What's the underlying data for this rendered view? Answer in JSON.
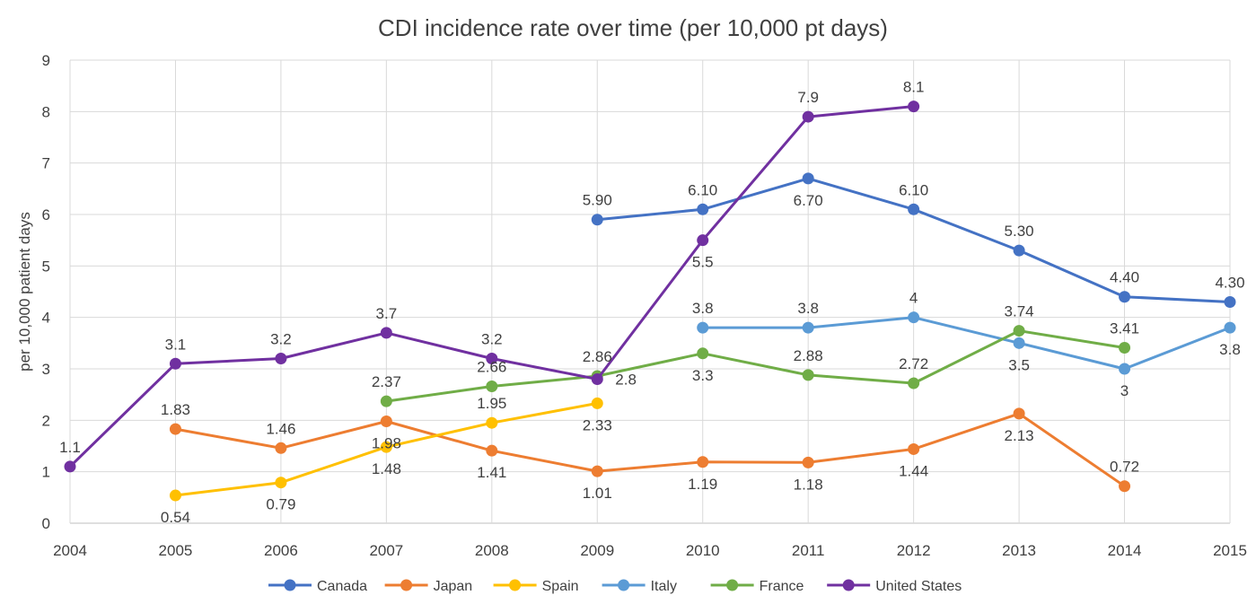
{
  "chart_data": {
    "type": "line",
    "title": "CDI incidence rate over time (per 10,000 pt days)",
    "xlabel": "",
    "ylabel": "per 10,000 patient days",
    "x": [
      "2004",
      "2005",
      "2006",
      "2007",
      "2008",
      "2009",
      "2010",
      "2011",
      "2012",
      "2013",
      "2014",
      "2015"
    ],
    "ylim": [
      0,
      9
    ],
    "yticks": [
      "0",
      "1",
      "2",
      "3",
      "4",
      "5",
      "6",
      "7",
      "8",
      "9"
    ],
    "grid": true,
    "legend_position": "bottom",
    "series": [
      {
        "name": "Canada",
        "color": "#4472C4",
        "values": [
          null,
          null,
          null,
          null,
          null,
          5.9,
          6.1,
          6.7,
          6.1,
          5.3,
          4.4,
          4.3
        ],
        "labels": [
          null,
          null,
          null,
          null,
          null,
          "5.90",
          "6.10",
          "6.70",
          "6.10",
          "5.30",
          "4.40",
          "4.30"
        ]
      },
      {
        "name": "Japan",
        "color": "#ED7D31",
        "values": [
          null,
          1.83,
          1.46,
          1.98,
          1.41,
          1.01,
          1.19,
          1.18,
          1.44,
          2.13,
          0.72,
          null
        ],
        "labels": [
          null,
          "1.83",
          "1.46",
          "1.98",
          "1.41",
          "1.01",
          "1.19",
          "1.18",
          "1.44",
          "2.13",
          "0.72",
          null
        ]
      },
      {
        "name": "Spain",
        "color": "#FFC000",
        "values": [
          null,
          0.54,
          0.79,
          1.48,
          1.95,
          2.33,
          null,
          null,
          null,
          null,
          null,
          null
        ],
        "labels": [
          null,
          "0.54",
          "0.79",
          "1.48",
          "1.95",
          "2.33",
          null,
          null,
          null,
          null,
          null,
          null
        ]
      },
      {
        "name": "Italy",
        "color": "#5B9BD5",
        "values": [
          null,
          null,
          null,
          null,
          null,
          null,
          3.8,
          3.8,
          4,
          3.5,
          3,
          3.8
        ],
        "labels": [
          null,
          null,
          null,
          null,
          null,
          null,
          "3.8",
          "3.8",
          "4",
          "3.5",
          "3",
          "3.8"
        ]
      },
      {
        "name": "France",
        "color": "#70AD47",
        "values": [
          null,
          null,
          null,
          2.37,
          2.66,
          2.86,
          3.3,
          2.88,
          2.72,
          3.74,
          3.41,
          null
        ],
        "labels": [
          null,
          null,
          null,
          "2.37",
          "2.66",
          "2.86",
          "3.3",
          "2.88",
          "2.72",
          "3.74",
          "3.41",
          null
        ]
      },
      {
        "name": "United States",
        "color": "#7030A0",
        "values": [
          1.1,
          3.1,
          3.2,
          3.7,
          3.2,
          2.8,
          5.5,
          7.9,
          8.1,
          null,
          null,
          null
        ],
        "labels": [
          "1.1",
          "3.1",
          "3.2",
          "3.7",
          "3.2",
          "2.8",
          "5.5",
          "7.9",
          "8.1",
          null,
          null,
          null
        ]
      }
    ]
  }
}
